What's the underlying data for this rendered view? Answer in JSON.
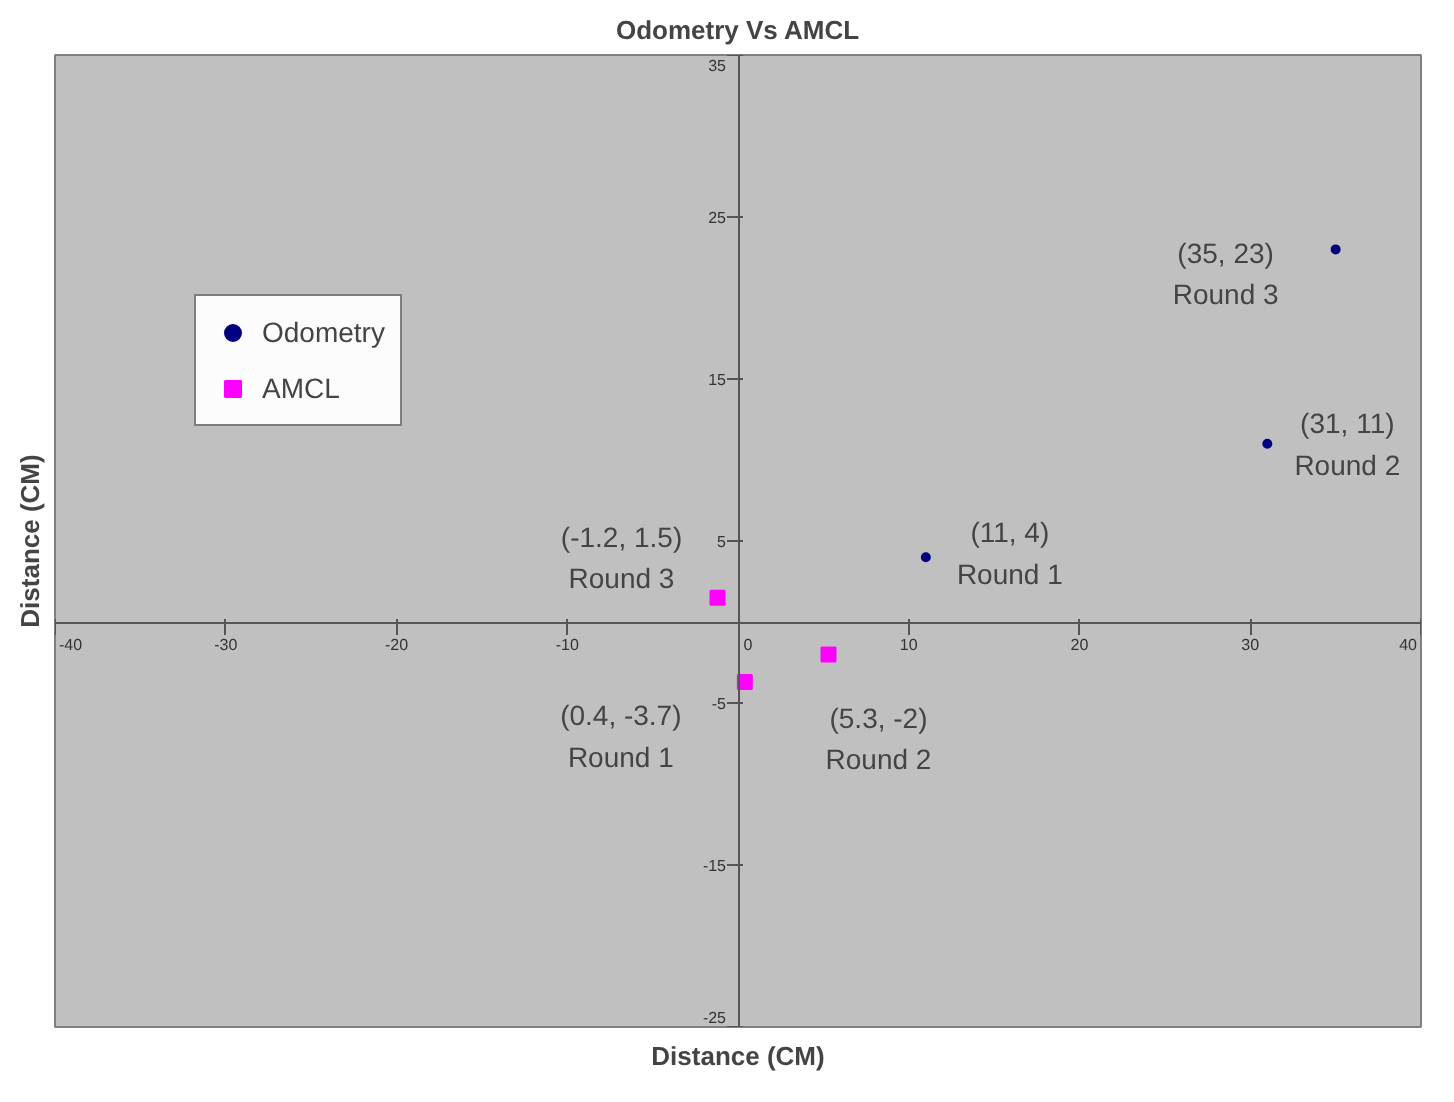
{
  "chart_data": {
    "type": "scatter",
    "title": "Odometry Vs AMCL",
    "xlabel": "Distance (CM)",
    "ylabel": "Distance (CM)",
    "series": [
      {
        "name": "Odometry",
        "color": "#000080",
        "x": [
          11,
          31,
          35
        ],
        "values": [
          4,
          11,
          23
        ],
        "marker": "circle"
      },
      {
        "name": "AMCL",
        "color": "#ff00ff",
        "x": [
          0.4,
          5.3,
          -1.2
        ],
        "values": [
          -3.7,
          -2,
          1.5
        ],
        "marker": "square"
      }
    ],
    "xlim": [
      -40,
      40
    ],
    "ylim": [
      -25,
      35
    ],
    "xticks": [
      -40,
      -30,
      -20,
      -10,
      0,
      10,
      20,
      30,
      40
    ],
    "yticks": [
      -25,
      -15,
      -5,
      5,
      15,
      25,
      35
    ],
    "grid": false,
    "legend": "top left",
    "annotations": [
      {
        "text": "(11, 4)\nRound 1",
        "x": 11,
        "y": 4
      },
      {
        "text": "(31, 11)\nRound 2",
        "x": 31,
        "y": 11
      },
      {
        "text": "(35, 23)\nRound 3",
        "x": 35,
        "y": 23
      },
      {
        "text": "(-1.2, 1.5)\nRound 3",
        "x": -1.2,
        "y": 1.5
      },
      {
        "text": "(0.4, -3.7)\nRound 1",
        "x": 0.4,
        "y": -3.7
      },
      {
        "text": "(5.3, -2)\nRound 2",
        "x": 5.3,
        "y": -2
      }
    ]
  }
}
